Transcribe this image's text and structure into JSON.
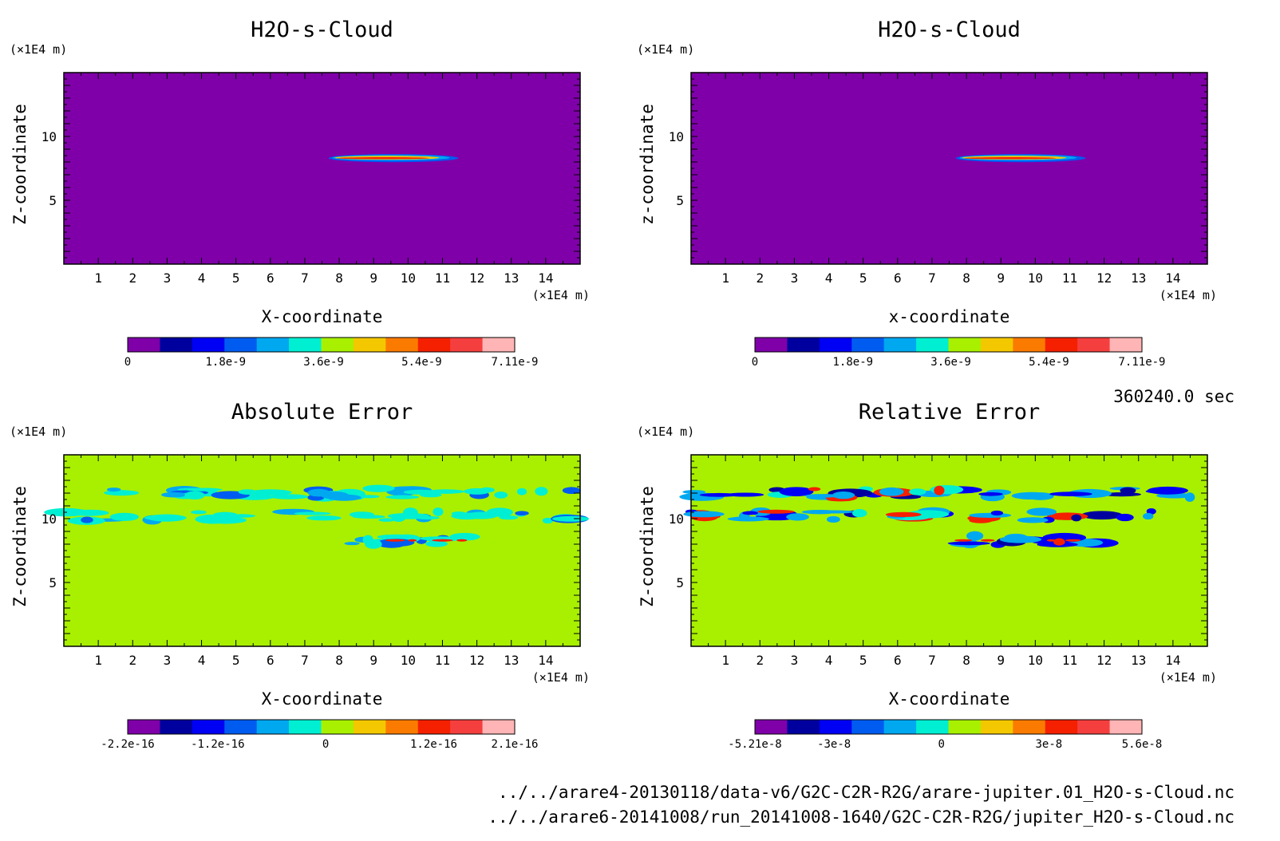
{
  "chart_data": [
    {
      "type": "heatmap",
      "title": "H2O-s-Cloud",
      "xlabel": "X-coordinate",
      "ylabel": "Z-coordinate",
      "x_unit": "(×1E4 m)",
      "y_unit": "(×1E4 m)",
      "xlim": [
        0,
        15
      ],
      "ylim": [
        0,
        15
      ],
      "xticks": [
        "1",
        "2",
        "3",
        "4",
        "5",
        "6",
        "7",
        "8",
        "9",
        "10",
        "11",
        "12",
        "13",
        "14"
      ],
      "yticks": [
        "5",
        "10"
      ],
      "background_color": "#7f00a9",
      "colorbar": {
        "colors": [
          "#7f00a9",
          "#00009e",
          "#0000f5",
          "#005cf0",
          "#00a8f0",
          "#00efd2",
          "#a8f000",
          "#f4c800",
          "#fb7b00",
          "#f52000",
          "#f53f3f",
          "#ffb5b5"
        ],
        "labels": [
          "0",
          "1.8e-9",
          "3.6e-9",
          "5.4e-9",
          "7.11e-9"
        ],
        "min": 0,
        "max": 7.11e-09
      },
      "features": [
        {
          "x_range": [
            7.8,
            11.5
          ],
          "z": 8.3,
          "description": "thin cloud layer"
        }
      ]
    },
    {
      "type": "heatmap",
      "title": "H2O-s-Cloud",
      "xlabel": "x-coordinate",
      "ylabel": "z-coordinate",
      "x_unit": "(×1E4 m)",
      "y_unit": "(×1E4 m)",
      "xlim": [
        0,
        15
      ],
      "ylim": [
        0,
        15
      ],
      "xticks": [
        "1",
        "2",
        "3",
        "4",
        "5",
        "6",
        "7",
        "8",
        "9",
        "10",
        "11",
        "12",
        "13",
        "14"
      ],
      "yticks": [
        "5",
        "10"
      ],
      "background_color": "#7f00a9",
      "colorbar": {
        "colors": [
          "#7f00a9",
          "#00009e",
          "#0000f5",
          "#005cf0",
          "#00a8f0",
          "#00efd2",
          "#a8f000",
          "#f4c800",
          "#fb7b00",
          "#f52000",
          "#f53f3f",
          "#ffb5b5"
        ],
        "labels": [
          "0",
          "1.8e-9",
          "3.6e-9",
          "5.4e-9",
          "7.11e-9"
        ],
        "min": 0,
        "max": 7.11e-09
      },
      "features": [
        {
          "x_range": [
            7.8,
            11.5
          ],
          "z": 8.3,
          "description": "thin cloud layer"
        }
      ]
    },
    {
      "type": "heatmap",
      "title": "Absolute Error",
      "xlabel": "X-coordinate",
      "ylabel": "Z-coordinate",
      "x_unit": "(×1E4 m)",
      "y_unit": "(×1E4 m)",
      "xlim": [
        0,
        15
      ],
      "ylim": [
        0,
        15
      ],
      "xticks": [
        "1",
        "2",
        "3",
        "4",
        "5",
        "6",
        "7",
        "8",
        "9",
        "10",
        "11",
        "12",
        "13",
        "14"
      ],
      "yticks": [
        "5",
        "10"
      ],
      "background_color": "#a8f000",
      "colorbar": {
        "colors": [
          "#7f00a9",
          "#00009e",
          "#0000f5",
          "#005cf0",
          "#00a8f0",
          "#00efd2",
          "#a8f000",
          "#f4c800",
          "#fb7b00",
          "#f52000",
          "#f53f3f",
          "#ffb5b5"
        ],
        "labels": [
          "-2.2e-16",
          "-1.2e-16",
          "0",
          "1.2e-16",
          "2.1e-16"
        ],
        "min": -2.2e-16,
        "max": 2.1e-16
      },
      "features": [
        {
          "x_range": [
            0,
            15
          ],
          "z": 12.0,
          "description": "error band"
        },
        {
          "x_range": [
            0,
            15
          ],
          "z": 10.2,
          "description": "error band"
        },
        {
          "x_range": [
            7.8,
            11.8
          ],
          "z": 8.3,
          "description": "error band"
        }
      ]
    },
    {
      "type": "heatmap",
      "title": "Relative Error",
      "xlabel": "X-coordinate",
      "ylabel": "Z-coordinate",
      "x_unit": "(×1E4 m)",
      "y_unit": "(×1E4 m)",
      "xlim": [
        0,
        15
      ],
      "ylim": [
        0,
        15
      ],
      "xticks": [
        "1",
        "2",
        "3",
        "4",
        "5",
        "6",
        "7",
        "8",
        "9",
        "10",
        "11",
        "12",
        "13",
        "14"
      ],
      "yticks": [
        "5",
        "10"
      ],
      "background_color": "#a8f000",
      "colorbar": {
        "colors": [
          "#7f00a9",
          "#00009e",
          "#0000f5",
          "#005cf0",
          "#00a8f0",
          "#00efd2",
          "#a8f000",
          "#f4c800",
          "#fb7b00",
          "#f52000",
          "#f53f3f",
          "#ffb5b5"
        ],
        "labels": [
          "-5.21e-8",
          "-3e-8",
          "0",
          "3e-8",
          "5.6e-8"
        ],
        "min": -5.21e-08,
        "max": 5.6e-08
      },
      "features": [
        {
          "x_range": [
            0,
            15
          ],
          "z": 12.0,
          "description": "error band"
        },
        {
          "x_range": [
            0,
            15
          ],
          "z": 10.2,
          "description": "error band"
        },
        {
          "x_range": [
            7.8,
            11.8
          ],
          "z": 8.3,
          "description": "error band"
        }
      ]
    }
  ],
  "time_label": "360240.0 sec",
  "file_paths": [
    "../../arare4-20130118/data-v6/G2C-C2R-R2G/arare-jupiter.01_H2O-s-Cloud.nc",
    "../../arare6-20141008/run_20141008-1640/G2C-C2R-R2G/jupiter_H2O-s-Cloud.nc"
  ]
}
